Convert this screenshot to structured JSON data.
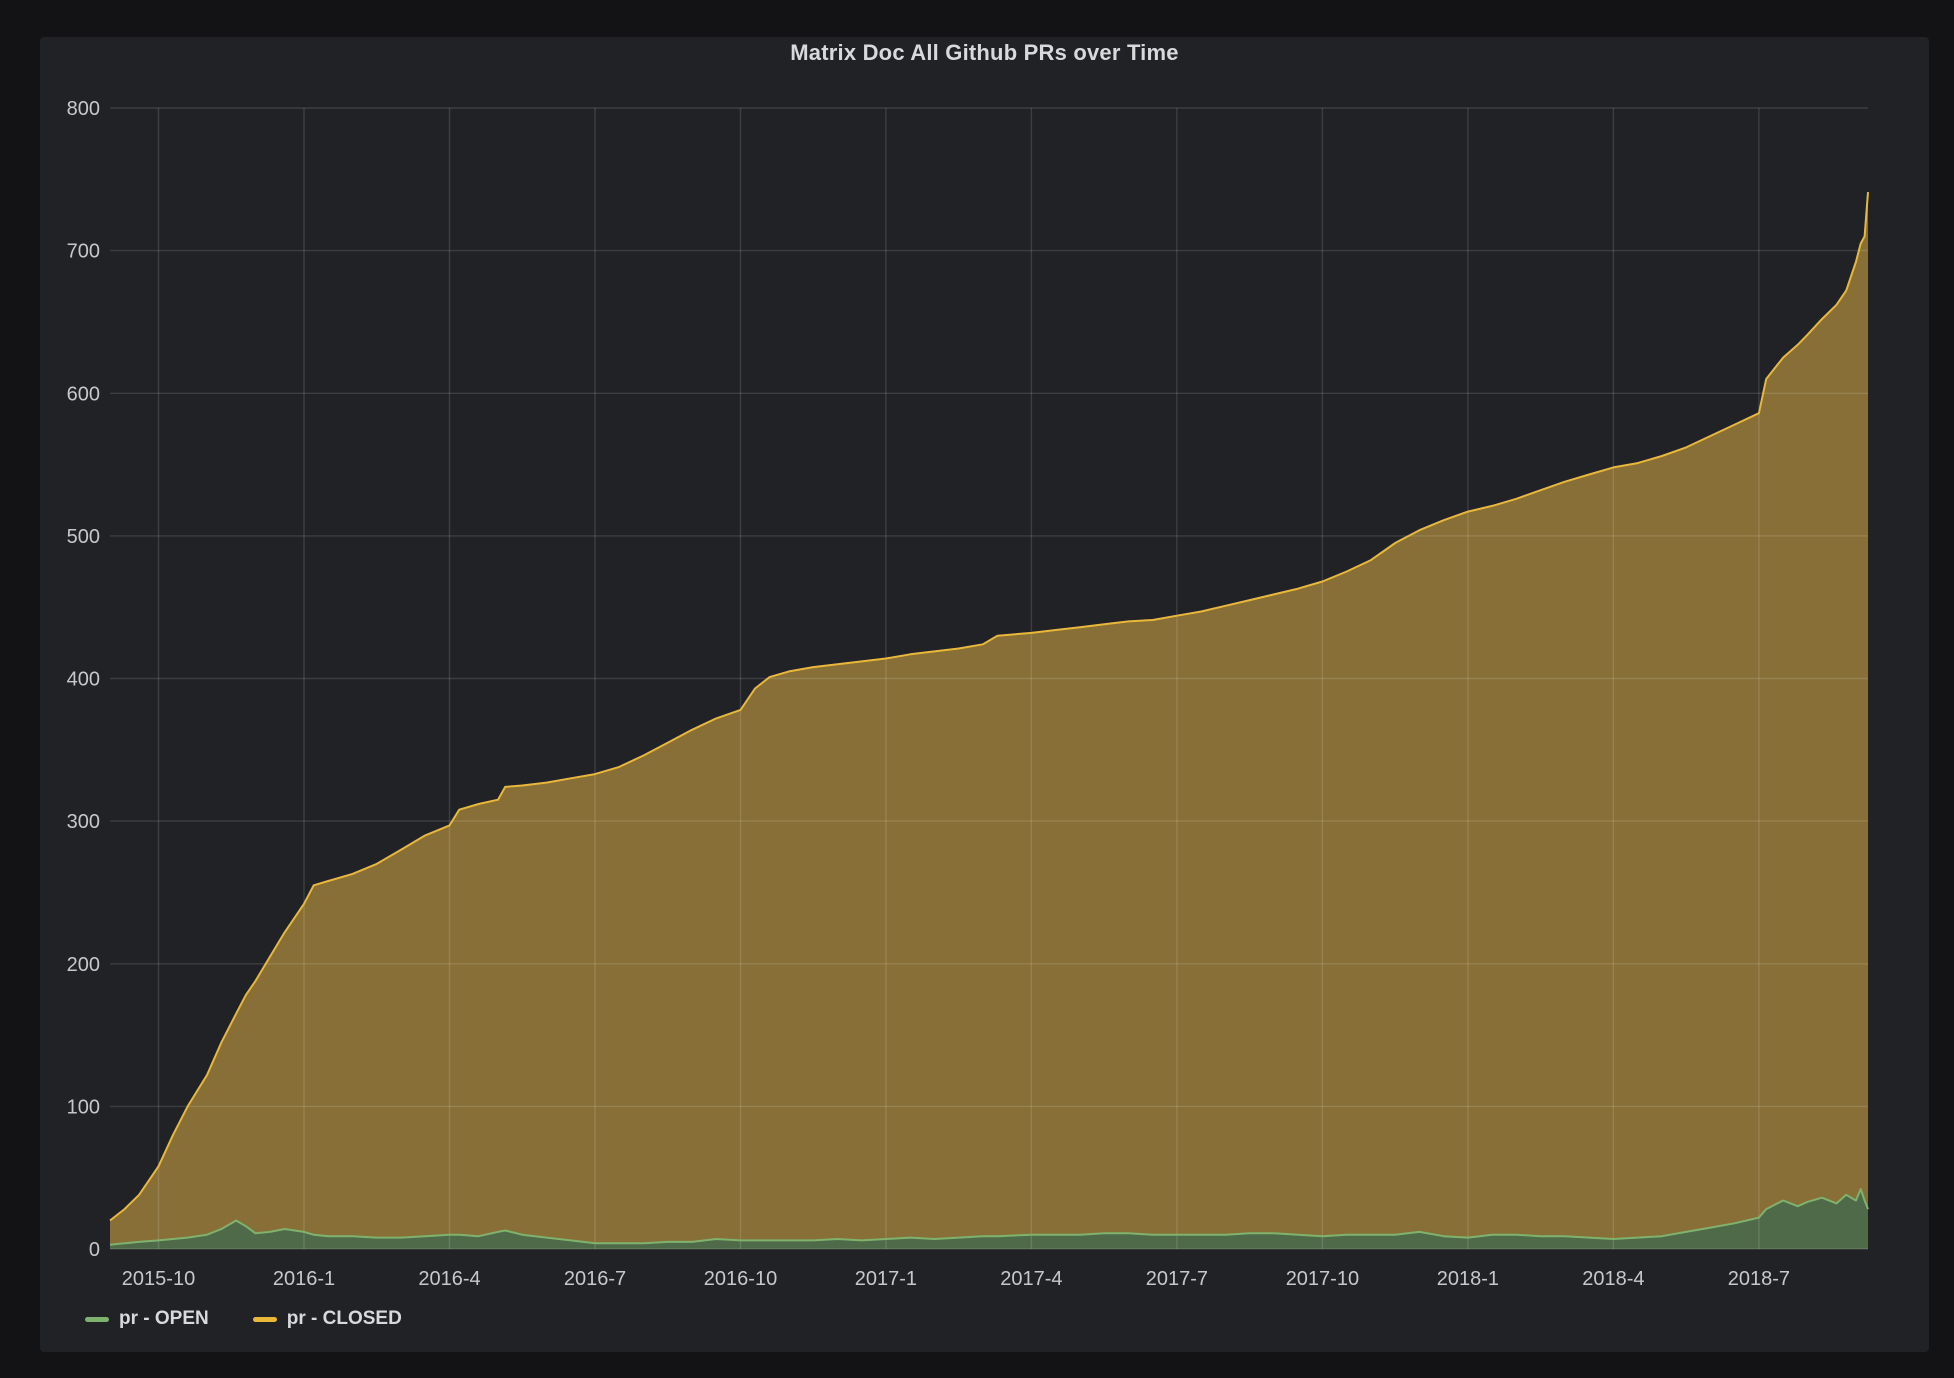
{
  "panel": {
    "title": "Matrix Doc All Github PRs over Time"
  },
  "legend": {
    "items": [
      {
        "label": "pr - OPEN",
        "color": "#7eb26d"
      },
      {
        "label": "pr - CLOSED",
        "color": "#eab839"
      }
    ]
  },
  "colors": {
    "background_outer": "#131316",
    "panel_background": "#212226",
    "gridline": "rgba(255,255,255,0.13)",
    "axis_text": "#c7c8ca",
    "title_text": "#d8d9da",
    "open_line": "#7eb26d",
    "open_fill": "#4f6a49",
    "closed_line": "#eab839",
    "closed_fill": "#876f37"
  },
  "chart_data": {
    "type": "area",
    "stacked": true,
    "title": "Matrix Doc All Github PRs over Time",
    "xlabel": "",
    "ylabel": "",
    "ylim": [
      0,
      800
    ],
    "y_ticks": [
      0,
      100,
      200,
      300,
      400,
      500,
      600,
      700,
      800
    ],
    "x_unit": "months since 2015-09-01",
    "x_range": [
      0,
      36.25
    ],
    "x_tick_positions": [
      1,
      4,
      7,
      10,
      13,
      16,
      19,
      22,
      25,
      28,
      31,
      34
    ],
    "x_tick_labels": [
      "2015-10",
      "2016-1",
      "2016-4",
      "2016-7",
      "2016-10",
      "2017-1",
      "2017-4",
      "2017-7",
      "2017-10",
      "2018-1",
      "2018-4",
      "2018-7"
    ],
    "grid": true,
    "legend_position": "bottom-left",
    "t": [
      0,
      0.3,
      0.6,
      1,
      1.3,
      1.6,
      2,
      2.3,
      2.6,
      2.8,
      3,
      3.3,
      3.6,
      4,
      4.2,
      4.5,
      5,
      5.5,
      6,
      6.5,
      7,
      7.2,
      7.6,
      8,
      8.15,
      8.5,
      9,
      9.5,
      10,
      10.5,
      11,
      11.5,
      12,
      12.5,
      13,
      13.3,
      13.6,
      14,
      14.5,
      15,
      15.5,
      16,
      16.5,
      17,
      17.5,
      18,
      18.3,
      19,
      19.5,
      20,
      20.5,
      21,
      21.5,
      22,
      22.5,
      23,
      23.5,
      24,
      24.5,
      25,
      25.5,
      26,
      26.5,
      27,
      27.5,
      28,
      28.5,
      29,
      29.5,
      30,
      30.5,
      31,
      31.5,
      32,
      32.5,
      33,
      33.5,
      34,
      34.15,
      34.5,
      34.8,
      35,
      35.3,
      35.6,
      35.8,
      36,
      36.1,
      36.18,
      36.25
    ],
    "series": [
      {
        "name": "pr - OPEN",
        "color": "#7eb26d",
        "fill": "#4f6a49",
        "values": [
          3,
          4,
          5,
          6,
          7,
          8,
          10,
          14,
          20,
          16,
          11,
          12,
          14,
          12,
          10,
          9,
          9,
          8,
          8,
          9,
          10,
          10,
          9,
          12,
          13,
          10,
          8,
          6,
          4,
          4,
          4,
          5,
          5,
          7,
          6,
          6,
          6,
          6,
          6,
          7,
          6,
          7,
          8,
          7,
          8,
          9,
          9,
          10,
          10,
          10,
          11,
          11,
          10,
          10,
          10,
          10,
          11,
          11,
          10,
          9,
          10,
          10,
          10,
          12,
          9,
          8,
          10,
          10,
          9,
          9,
          8,
          7,
          8,
          9,
          12,
          15,
          18,
          22,
          28,
          34,
          30,
          33,
          36,
          32,
          38,
          34,
          42,
          34,
          28
        ]
      },
      {
        "name": "pr - CLOSED",
        "color": "#eab839",
        "fill": "#876f37",
        "values": [
          17,
          24,
          33,
          52,
          73,
          92,
          112,
          131,
          145,
          162,
          177,
          193,
          208,
          230,
          245,
          249,
          254,
          262,
          272,
          281,
          287,
          298,
          303,
          303,
          311,
          315,
          319,
          324,
          329,
          334,
          342,
          350,
          359,
          365,
          372,
          387,
          395,
          399,
          402,
          403,
          406,
          407,
          409,
          412,
          413,
          415,
          421,
          422,
          424,
          426,
          427,
          429,
          431,
          434,
          437,
          441,
          444,
          448,
          453,
          459,
          465,
          473,
          485,
          492,
          502,
          509,
          511,
          516,
          523,
          529,
          535,
          541,
          543,
          547,
          550,
          555,
          560,
          564,
          582,
          591,
          604,
          608,
          616,
          630,
          634,
          658,
          663,
          676,
          713
        ]
      }
    ]
  }
}
